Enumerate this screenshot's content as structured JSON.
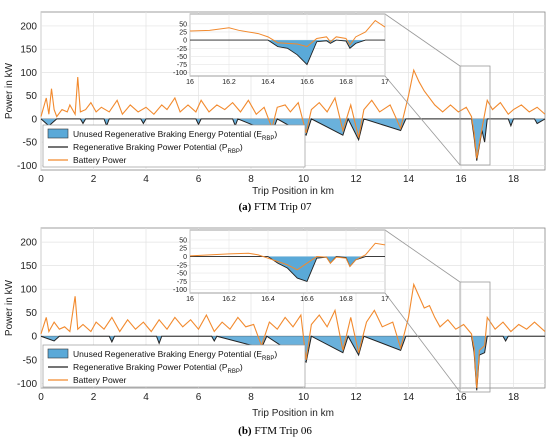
{
  "chart_data": [
    {
      "type": "line",
      "caption_label": "(a)",
      "caption_text": "FTM Trip 07",
      "xlabel": "Trip Position in km",
      "ylabel": "Power in kW",
      "xlim": [
        0,
        19.2
      ],
      "ylim": [
        -110,
        230
      ],
      "xticks": [
        0,
        2,
        4,
        6,
        8,
        10,
        12,
        14,
        16,
        18
      ],
      "yticks": [
        -100,
        -50,
        0,
        50,
        100,
        150,
        200
      ],
      "grid": true,
      "legend_position": "bottom-left",
      "series": [
        {
          "name": "Unused Regenerative Braking Energy Potential (E_RBP)",
          "color": "#5aa9d8",
          "kind": "area"
        },
        {
          "name": "Regenerative Braking Power Potential (P_RBP)",
          "color": "#222222",
          "kind": "line"
        },
        {
          "name": "Battery Power",
          "color": "#f28a2e",
          "kind": "line"
        }
      ],
      "battery_points": [
        [
          0,
          5
        ],
        [
          0.2,
          45
        ],
        [
          0.3,
          10
        ],
        [
          0.4,
          65
        ],
        [
          0.5,
          20
        ],
        [
          0.6,
          5
        ],
        [
          0.8,
          20
        ],
        [
          1.0,
          15
        ],
        [
          1.1,
          30
        ],
        [
          1.3,
          10
        ],
        [
          1.4,
          90
        ],
        [
          1.5,
          15
        ],
        [
          1.7,
          20
        ],
        [
          1.9,
          35
        ],
        [
          2.1,
          15
        ],
        [
          2.3,
          25
        ],
        [
          2.6,
          15
        ],
        [
          2.9,
          40
        ],
        [
          3.1,
          10
        ],
        [
          3.4,
          30
        ],
        [
          3.7,
          15
        ],
        [
          4.0,
          25
        ],
        [
          4.3,
          10
        ],
        [
          4.6,
          30
        ],
        [
          4.8,
          20
        ],
        [
          5.1,
          45
        ],
        [
          5.3,
          15
        ],
        [
          5.6,
          30
        ],
        [
          5.9,
          15
        ],
        [
          6.1,
          40
        ],
        [
          6.4,
          15
        ],
        [
          6.7,
          30
        ],
        [
          7.0,
          20
        ],
        [
          7.3,
          35
        ],
        [
          7.6,
          15
        ],
        [
          7.9,
          40
        ],
        [
          8.2,
          10
        ],
        [
          8.5,
          25
        ],
        [
          8.8,
          -20
        ],
        [
          9.0,
          25
        ],
        [
          9.3,
          30
        ],
        [
          9.5,
          15
        ],
        [
          9.8,
          35
        ],
        [
          10.1,
          -30
        ],
        [
          10.3,
          20
        ],
        [
          10.6,
          35
        ],
        [
          10.9,
          15
        ],
        [
          11.2,
          45
        ],
        [
          11.5,
          -25
        ],
        [
          11.8,
          30
        ],
        [
          12.1,
          -40
        ],
        [
          12.3,
          20
        ],
        [
          12.6,
          40
        ],
        [
          12.9,
          15
        ],
        [
          13.3,
          30
        ],
        [
          13.7,
          -20
        ],
        [
          14.0,
          50
        ],
        [
          14.2,
          105
        ],
        [
          14.4,
          80
        ],
        [
          14.6,
          60
        ],
        [
          14.8,
          45
        ],
        [
          15.0,
          30
        ],
        [
          15.3,
          15
        ],
        [
          15.6,
          30
        ],
        [
          15.9,
          15
        ],
        [
          16.2,
          25
        ],
        [
          16.4,
          5
        ],
        [
          16.5,
          -30
        ],
        [
          16.6,
          -85
        ],
        [
          16.8,
          -20
        ],
        [
          17.0,
          40
        ],
        [
          17.2,
          20
        ],
        [
          17.5,
          35
        ],
        [
          17.8,
          10
        ],
        [
          18.0,
          20
        ],
        [
          18.3,
          30
        ],
        [
          18.6,
          15
        ],
        [
          18.9,
          25
        ],
        [
          19.2,
          10
        ]
      ],
      "rbp_points": [
        [
          0,
          0
        ],
        [
          0.3,
          -15
        ],
        [
          0.6,
          0
        ],
        [
          1.5,
          0
        ],
        [
          1.6,
          -10
        ],
        [
          1.7,
          0
        ],
        [
          2.4,
          0
        ],
        [
          2.5,
          -15
        ],
        [
          2.6,
          0
        ],
        [
          3.8,
          0
        ],
        [
          3.9,
          -10
        ],
        [
          4.0,
          0
        ],
        [
          5.9,
          0
        ],
        [
          6.0,
          -12
        ],
        [
          6.1,
          0
        ],
        [
          7.3,
          0
        ],
        [
          7.4,
          -15
        ],
        [
          7.5,
          0
        ],
        [
          8.8,
          -30
        ],
        [
          9.0,
          0
        ],
        [
          10.1,
          -35
        ],
        [
          10.3,
          0
        ],
        [
          11.5,
          -35
        ],
        [
          11.7,
          0
        ],
        [
          12.1,
          -45
        ],
        [
          12.3,
          0
        ],
        [
          13.7,
          -25
        ],
        [
          13.9,
          0
        ],
        [
          16.4,
          0
        ],
        [
          16.5,
          -40
        ],
        [
          16.6,
          -90
        ],
        [
          16.8,
          -25
        ],
        [
          16.9,
          -50
        ],
        [
          17.0,
          0
        ],
        [
          17.8,
          0
        ],
        [
          17.9,
          -15
        ],
        [
          18.0,
          0
        ],
        [
          18.8,
          0
        ],
        [
          18.9,
          -10
        ],
        [
          19.2,
          0
        ]
      ],
      "inset": {
        "xlim": [
          16,
          17
        ],
        "ylim": [
          -110,
          80
        ],
        "xticks": [
          16,
          16.2,
          16.4,
          16.6,
          16.8,
          17
        ],
        "yticks": [
          -100,
          -75,
          -50,
          -25,
          0,
          25,
          50
        ],
        "battery_points": [
          [
            16.0,
            28
          ],
          [
            16.1,
            30
          ],
          [
            16.2,
            38
          ],
          [
            16.25,
            30
          ],
          [
            16.3,
            25
          ],
          [
            16.35,
            20
          ],
          [
            16.4,
            10
          ],
          [
            16.45,
            -8
          ],
          [
            16.5,
            -10
          ],
          [
            16.55,
            -12
          ],
          [
            16.6,
            -20
          ],
          [
            16.65,
            5
          ],
          [
            16.7,
            10
          ],
          [
            16.72,
            -5
          ],
          [
            16.75,
            10
          ],
          [
            16.8,
            5
          ],
          [
            16.82,
            -15
          ],
          [
            16.85,
            10
          ],
          [
            16.9,
            25
          ],
          [
            16.95,
            60
          ],
          [
            17.0,
            40
          ]
        ],
        "rbp_points": [
          [
            16.0,
            0
          ],
          [
            16.4,
            0
          ],
          [
            16.45,
            -20
          ],
          [
            16.5,
            -25
          ],
          [
            16.55,
            -45
          ],
          [
            16.6,
            -75
          ],
          [
            16.65,
            -5
          ],
          [
            16.7,
            -2
          ],
          [
            16.72,
            -10
          ],
          [
            16.75,
            0
          ],
          [
            16.8,
            -3
          ],
          [
            16.82,
            -25
          ],
          [
            16.85,
            -10
          ],
          [
            16.9,
            0
          ],
          [
            17.0,
            0
          ]
        ]
      }
    },
    {
      "type": "line",
      "caption_label": "(b)",
      "caption_text": "FTM Trip 06",
      "xlabel": "Trip Position in km",
      "ylabel": "Power in kW",
      "xlim": [
        0,
        19.2
      ],
      "ylim": [
        -110,
        230
      ],
      "xticks": [
        0,
        2,
        4,
        6,
        8,
        10,
        12,
        14,
        16,
        18
      ],
      "yticks": [
        -100,
        -50,
        0,
        50,
        100,
        150,
        200
      ],
      "grid": true,
      "legend_position": "bottom-left",
      "series": [
        {
          "name": "Unused Regenerative Braking Energy Potential (E_RBP)",
          "color": "#5aa9d8",
          "kind": "area"
        },
        {
          "name": "Regenerative Braking Power Potential (P_RBP)",
          "color": "#222222",
          "kind": "line"
        },
        {
          "name": "Battery Power",
          "color": "#f28a2e",
          "kind": "line"
        }
      ],
      "battery_points": [
        [
          0,
          5
        ],
        [
          0.2,
          40
        ],
        [
          0.3,
          10
        ],
        [
          0.5,
          30
        ],
        [
          0.7,
          15
        ],
        [
          0.9,
          20
        ],
        [
          1.1,
          10
        ],
        [
          1.3,
          85
        ],
        [
          1.4,
          15
        ],
        [
          1.6,
          25
        ],
        [
          1.9,
          10
        ],
        [
          2.1,
          30
        ],
        [
          2.4,
          15
        ],
        [
          2.7,
          40
        ],
        [
          3.0,
          10
        ],
        [
          3.3,
          35
        ],
        [
          3.6,
          15
        ],
        [
          3.9,
          30
        ],
        [
          4.2,
          10
        ],
        [
          4.5,
          35
        ],
        [
          4.8,
          15
        ],
        [
          5.1,
          40
        ],
        [
          5.4,
          20
        ],
        [
          5.7,
          35
        ],
        [
          6.0,
          15
        ],
        [
          6.3,
          45
        ],
        [
          6.6,
          10
        ],
        [
          6.9,
          30
        ],
        [
          7.2,
          15
        ],
        [
          7.5,
          40
        ],
        [
          7.8,
          20
        ],
        [
          8.1,
          25
        ],
        [
          8.4,
          -20
        ],
        [
          8.7,
          30
        ],
        [
          9.0,
          15
        ],
        [
          9.3,
          40
        ],
        [
          9.6,
          20
        ],
        [
          9.9,
          45
        ],
        [
          10.1,
          -50
        ],
        [
          10.3,
          25
        ],
        [
          10.6,
          45
        ],
        [
          10.9,
          20
        ],
        [
          11.2,
          55
        ],
        [
          11.5,
          -30
        ],
        [
          11.8,
          40
        ],
        [
          12.1,
          -35
        ],
        [
          12.4,
          30
        ],
        [
          12.7,
          55
        ],
        [
          13.0,
          20
        ],
        [
          13.4,
          30
        ],
        [
          13.7,
          -25
        ],
        [
          14.0,
          40
        ],
        [
          14.2,
          110
        ],
        [
          14.4,
          85
        ],
        [
          14.6,
          60
        ],
        [
          14.8,
          65
        ],
        [
          15.0,
          40
        ],
        [
          15.2,
          20
        ],
        [
          15.5,
          35
        ],
        [
          15.8,
          15
        ],
        [
          16.1,
          25
        ],
        [
          16.4,
          5
        ],
        [
          16.5,
          -25
        ],
        [
          16.6,
          -110
        ],
        [
          16.7,
          -30
        ],
        [
          16.9,
          -20
        ],
        [
          17.0,
          40
        ],
        [
          17.3,
          15
        ],
        [
          17.6,
          30
        ],
        [
          17.9,
          10
        ],
        [
          18.2,
          25
        ],
        [
          18.5,
          15
        ],
        [
          18.8,
          30
        ],
        [
          19.2,
          10
        ]
      ],
      "rbp_points": [
        [
          0,
          0
        ],
        [
          0.5,
          -10
        ],
        [
          0.7,
          0
        ],
        [
          2.6,
          0
        ],
        [
          2.7,
          -12
        ],
        [
          2.8,
          0
        ],
        [
          4.4,
          0
        ],
        [
          4.5,
          -15
        ],
        [
          4.6,
          0
        ],
        [
          6.5,
          0
        ],
        [
          6.6,
          -10
        ],
        [
          6.7,
          0
        ],
        [
          8.4,
          -25
        ],
        [
          8.6,
          0
        ],
        [
          10.1,
          -55
        ],
        [
          10.3,
          0
        ],
        [
          11.5,
          -35
        ],
        [
          11.7,
          0
        ],
        [
          12.1,
          -40
        ],
        [
          12.3,
          0
        ],
        [
          13.7,
          -30
        ],
        [
          13.9,
          0
        ],
        [
          16.4,
          0
        ],
        [
          16.5,
          -35
        ],
        [
          16.6,
          -115
        ],
        [
          16.7,
          -40
        ],
        [
          16.9,
          -35
        ],
        [
          17.0,
          0
        ],
        [
          17.6,
          0
        ],
        [
          17.7,
          -10
        ],
        [
          17.8,
          0
        ],
        [
          19.2,
          0
        ]
      ],
      "inset": {
        "xlim": [
          16,
          17
        ],
        "ylim": [
          -110,
          80
        ],
        "xticks": [
          16,
          16.2,
          16.4,
          16.6,
          16.8,
          17
        ],
        "yticks": [
          -100,
          -75,
          -50,
          -25,
          0,
          25,
          50
        ],
        "battery_points": [
          [
            16.0,
            2
          ],
          [
            16.1,
            5
          ],
          [
            16.2,
            8
          ],
          [
            16.3,
            10
          ],
          [
            16.35,
            5
          ],
          [
            16.4,
            -5
          ],
          [
            16.45,
            -15
          ],
          [
            16.5,
            -25
          ],
          [
            16.55,
            -40
          ],
          [
            16.6,
            -20
          ],
          [
            16.65,
            0
          ],
          [
            16.7,
            -2
          ],
          [
            16.72,
            -20
          ],
          [
            16.75,
            -2
          ],
          [
            16.8,
            -5
          ],
          [
            16.82,
            -30
          ],
          [
            16.85,
            -10
          ],
          [
            16.9,
            5
          ],
          [
            16.95,
            40
          ],
          [
            17.0,
            35
          ]
        ],
        "rbp_points": [
          [
            16.0,
            0
          ],
          [
            16.4,
            0
          ],
          [
            16.45,
            -20
          ],
          [
            16.5,
            -35
          ],
          [
            16.55,
            -65
          ],
          [
            16.6,
            -75
          ],
          [
            16.65,
            -5
          ],
          [
            16.7,
            -2
          ],
          [
            16.72,
            -20
          ],
          [
            16.75,
            0
          ],
          [
            16.8,
            -3
          ],
          [
            16.82,
            -30
          ],
          [
            16.85,
            -10
          ],
          [
            16.9,
            0
          ],
          [
            17.0,
            0
          ]
        ]
      }
    }
  ],
  "legend": {
    "area_label_main": "Unused Regenerative Braking Energy Potential (E",
    "area_label_sub": "RBP",
    "area_label_end": ")",
    "line_label_main": "Regenerative Braking Power Potential (P",
    "line_label_sub": "RBP",
    "line_label_end": ")",
    "battery_label": "Battery Power"
  }
}
